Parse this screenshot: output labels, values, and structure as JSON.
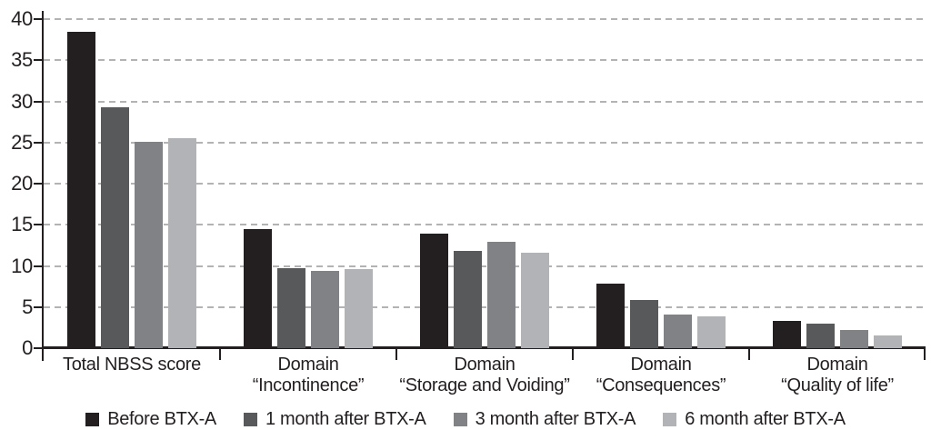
{
  "chart_data": {
    "type": "bar",
    "title": "",
    "xlabel": "",
    "ylabel": "",
    "categories": [
      {
        "lines": [
          "Total NBSS score"
        ]
      },
      {
        "lines": [
          "Domain",
          "“Incontinence”"
        ]
      },
      {
        "lines": [
          "Domain",
          "“Storage and Voiding”"
        ]
      },
      {
        "lines": [
          "Domain",
          "“Consequences”"
        ]
      },
      {
        "lines": [
          "Domain",
          "“Quality of life”"
        ]
      }
    ],
    "series": [
      {
        "name": "Before BTX-A",
        "color": "#231f20",
        "values": [
          38.5,
          14.5,
          13.9,
          7.9,
          3.3
        ]
      },
      {
        "name": "1 month after BTX-A",
        "color": "#58595b",
        "values": [
          29.3,
          9.7,
          11.8,
          5.9,
          3.0
        ]
      },
      {
        "name": "3 month after BTX-A",
        "color": "#808285",
        "values": [
          25.1,
          9.4,
          12.9,
          4.1,
          2.2
        ]
      },
      {
        "name": "6 month after BTX-A",
        "color": "#b1b3b6",
        "values": [
          25.5,
          9.6,
          11.6,
          3.9,
          1.6
        ]
      }
    ],
    "ylim": [
      0,
      40
    ],
    "yticks": [
      0,
      5,
      10,
      15,
      20,
      25,
      30,
      35,
      40
    ],
    "grid": "horizontal-dashed",
    "legend_position": "bottom",
    "colors": {
      "axis": "#231f20",
      "grid": "#b3b3b5",
      "text": "#231f20",
      "background": "#ffffff"
    }
  }
}
